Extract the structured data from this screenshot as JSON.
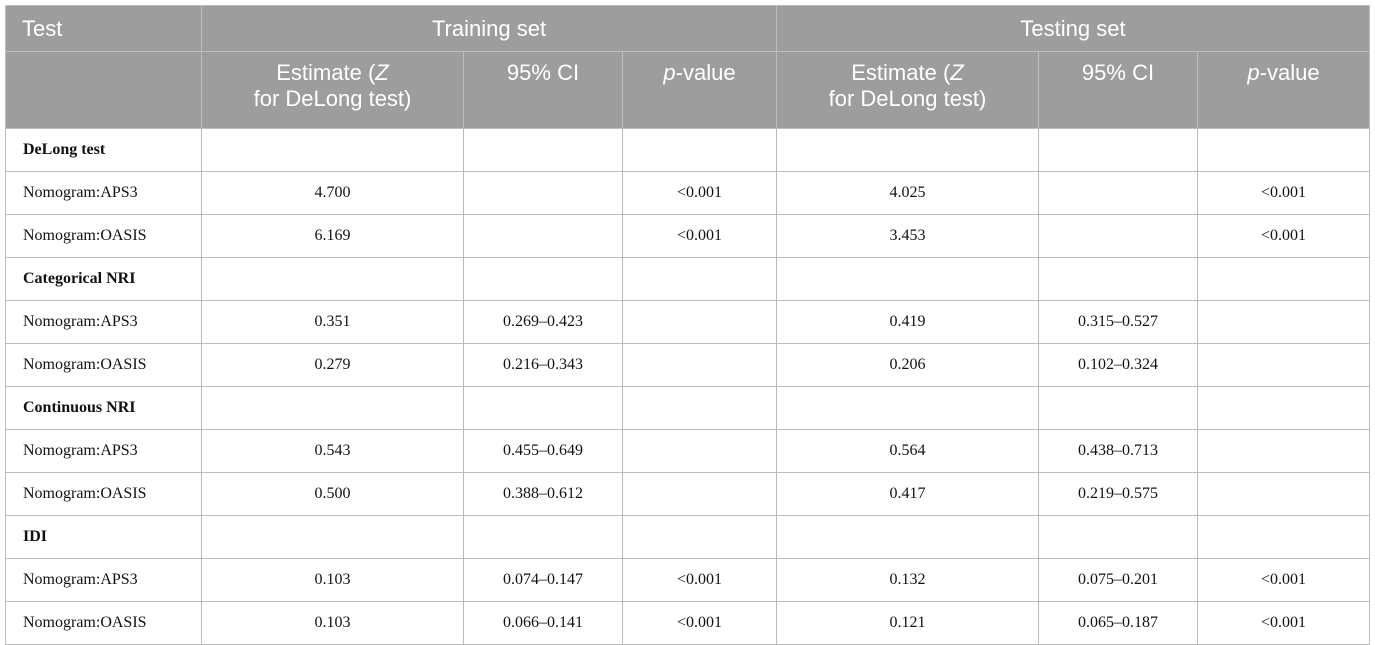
{
  "header": {
    "test_label": "Test",
    "training_label": "Training set",
    "testing_label": "Testing set",
    "estimate_line1": "Estimate (",
    "estimate_z": "Z",
    "estimate_line2": "for DeLong test)",
    "ci_label": "95% CI",
    "p_italic": "p",
    "p_rest": "-value"
  },
  "rows": [
    {
      "type": "section",
      "label": "DeLong test",
      "cells": [
        "",
        "",
        "",
        "",
        "",
        ""
      ]
    },
    {
      "type": "data",
      "label": "Nomogram:APS3",
      "cells": [
        "4.700",
        "",
        "<0.001",
        "4.025",
        "",
        "<0.001"
      ]
    },
    {
      "type": "data",
      "label": "Nomogram:OASIS",
      "cells": [
        "6.169",
        "",
        "<0.001",
        "3.453",
        "",
        "<0.001"
      ]
    },
    {
      "type": "section",
      "label": "Categorical NRI",
      "cells": [
        "",
        "",
        "",
        "",
        "",
        ""
      ]
    },
    {
      "type": "data",
      "label": "Nomogram:APS3",
      "cells": [
        "0.351",
        "0.269–0.423",
        "",
        "0.419",
        "0.315–0.527",
        ""
      ]
    },
    {
      "type": "data",
      "label": "Nomogram:OASIS",
      "cells": [
        "0.279",
        "0.216–0.343",
        "",
        "0.206",
        "0.102–0.324",
        ""
      ]
    },
    {
      "type": "section",
      "label": "Continuous NRI",
      "cells": [
        "",
        "",
        "",
        "",
        "",
        ""
      ]
    },
    {
      "type": "data",
      "label": "Nomogram:APS3",
      "cells": [
        "0.543",
        "0.455–0.649",
        "",
        "0.564",
        "0.438–0.713",
        ""
      ]
    },
    {
      "type": "data",
      "label": "Nomogram:OASIS",
      "cells": [
        "0.500",
        "0.388–0.612",
        "",
        "0.417",
        "0.219–0.575",
        ""
      ]
    },
    {
      "type": "section",
      "label": "IDI",
      "cells": [
        "",
        "",
        "",
        "",
        "",
        ""
      ]
    },
    {
      "type": "data",
      "label": "Nomogram:APS3",
      "cells": [
        "0.103",
        "0.074–0.147",
        "<0.001",
        "0.132",
        "0.075–0.201",
        "<0.001"
      ]
    },
    {
      "type": "data",
      "label": "Nomogram:OASIS",
      "cells": [
        "0.103",
        "0.066–0.141",
        "<0.001",
        "0.121",
        "0.065–0.187",
        "<0.001"
      ]
    }
  ]
}
